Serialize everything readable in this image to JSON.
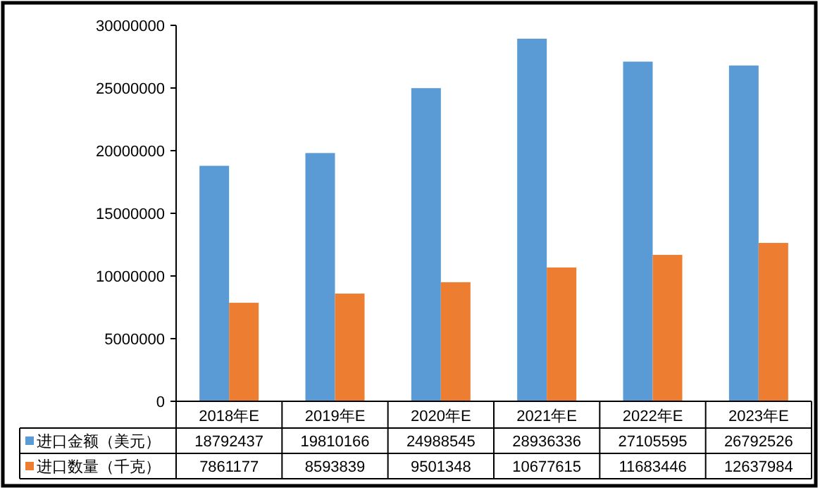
{
  "chart_data": {
    "type": "bar",
    "categories": [
      "2018年E",
      "2019年E",
      "2020年E",
      "2021年E",
      "2022年E",
      "2023年E"
    ],
    "series": [
      {
        "name": "进口金额（美元）",
        "color": "#5b9bd5",
        "values": [
          18792437,
          19810166,
          24988545,
          28936336,
          27105595,
          26792526
        ]
      },
      {
        "name": "进口数量（千克）",
        "color": "#ed7d31",
        "values": [
          7861177,
          8593839,
          9501348,
          10677615,
          11683446,
          12637984
        ]
      }
    ],
    "ylim": [
      0,
      30000000
    ],
    "yticks": [
      0,
      5000000,
      10000000,
      15000000,
      20000000,
      25000000,
      30000000
    ],
    "data_labels": true,
    "legend": "bottom",
    "grid": false
  }
}
